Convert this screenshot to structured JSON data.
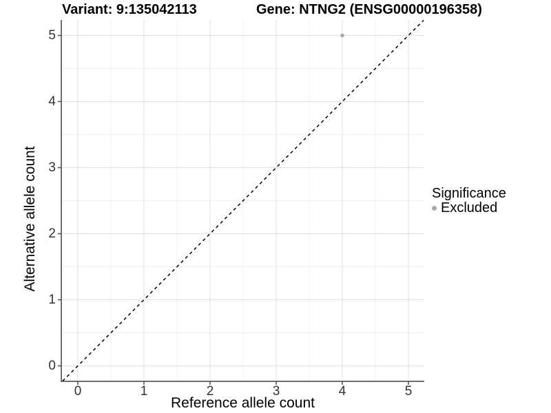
{
  "chart_data": {
    "type": "scatter",
    "title_left": "Variant: 9:135042113",
    "title_right": "Gene: NTNG2 (ENSG00000196358)",
    "xlabel": "Reference allele count",
    "ylabel": "Alternative allele count",
    "x_ticks": [
      0,
      1,
      2,
      3,
      4,
      5
    ],
    "y_ticks": [
      0,
      1,
      2,
      3,
      4,
      5
    ],
    "xlim": [
      -0.25,
      5.24
    ],
    "ylim": [
      -0.23,
      5.23
    ],
    "grid": {
      "major": true,
      "minor": true,
      "minor_step": 0.5
    },
    "points": [
      {
        "x": 4,
        "y": 5,
        "series": "Excluded"
      }
    ],
    "reference_line": {
      "slope": 1,
      "intercept": 0,
      "style": "dashed",
      "color": "#000000"
    },
    "legend": {
      "position": "right",
      "title": "Significance",
      "entries": [
        {
          "label": "Excluded",
          "color": "#a9a9a9"
        }
      ]
    }
  },
  "colors": {
    "point": "#a9a9a9",
    "grid_major": "#e3e3e3",
    "grid_minor": "#f0f0f0",
    "axis_line": "#6e6e6e",
    "tick_mark": "#555555",
    "dashed_line": "#000000",
    "tick_label": "#333333",
    "text": "#000000"
  }
}
